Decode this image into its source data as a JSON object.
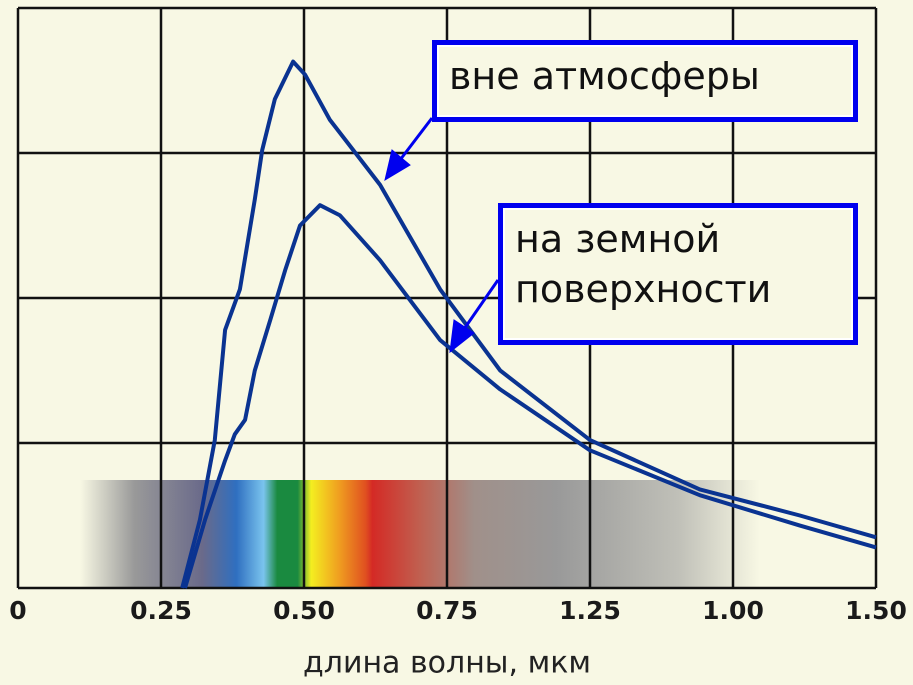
{
  "chart_data": {
    "type": "line",
    "x_label": "длина волны, мкм",
    "xtick_labels": [
      "0",
      "0.25",
      "0.50",
      "0.75",
      "1.25",
      "1.00",
      "1.50"
    ],
    "xlim": [
      0,
      1.5
    ],
    "ylim": [
      0,
      4
    ],
    "y_grid_lines": [
      1,
      2,
      3,
      4
    ],
    "grid": true,
    "series": [
      {
        "name": "вне атмосферы",
        "color": "#0a3391",
        "x": [
          0.287,
          0.318,
          0.344,
          0.362,
          0.388,
          0.414,
          0.427,
          0.449,
          0.481,
          0.502,
          0.545,
          0.633,
          0.738,
          0.843,
          1.0,
          1.192,
          1.367,
          1.5
        ],
        "values": [
          0,
          0.47,
          1.02,
          1.78,
          2.06,
          2.68,
          3.02,
          3.37,
          3.63,
          3.54,
          3.23,
          2.78,
          2.06,
          1.5,
          1.02,
          0.68,
          0.5,
          0.35
        ]
      },
      {
        "name": "на земной поверхности",
        "color": "#0a3391",
        "x": [
          0.292,
          0.327,
          0.362,
          0.379,
          0.397,
          0.414,
          0.441,
          0.467,
          0.493,
          0.528,
          0.563,
          0.633,
          0.738,
          0.843,
          1.0,
          1.192,
          1.367,
          1.5
        ],
        "values": [
          0,
          0.47,
          0.88,
          1.06,
          1.16,
          1.5,
          1.85,
          2.19,
          2.5,
          2.64,
          2.57,
          2.26,
          1.71,
          1.37,
          0.95,
          0.64,
          0.43,
          0.28
        ]
      }
    ]
  }
}
